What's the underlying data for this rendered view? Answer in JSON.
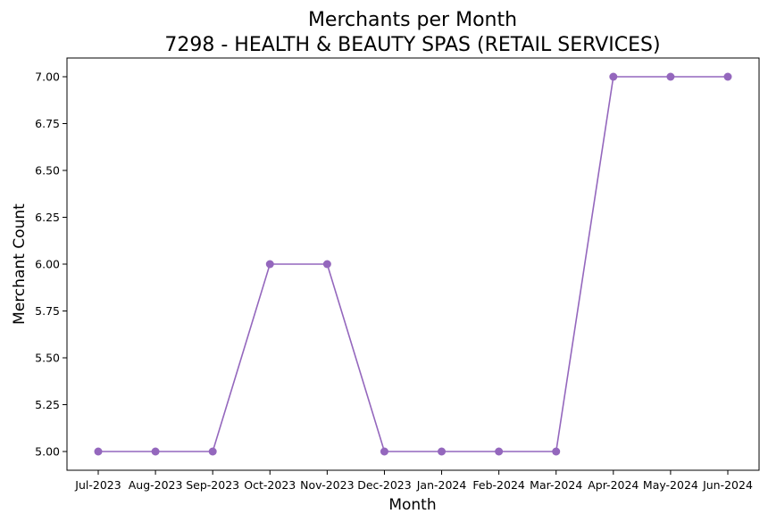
{
  "chart_data": {
    "type": "line",
    "title": "Merchants per Month",
    "subtitle": "7298 - HEALTH & BEAUTY SPAS (RETAIL SERVICES)",
    "xlabel": "Month",
    "ylabel": "Merchant Count",
    "categories": [
      "Jul-2023",
      "Aug-2023",
      "Sep-2023",
      "Oct-2023",
      "Nov-2023",
      "Dec-2023",
      "Jan-2024",
      "Feb-2024",
      "Mar-2024",
      "Apr-2024",
      "May-2024",
      "Jun-2024"
    ],
    "series": [
      {
        "values": [
          5,
          5,
          5,
          6,
          6,
          5,
          5,
          5,
          5,
          7,
          7,
          7
        ],
        "color": "#9467bd",
        "marker": "circle"
      }
    ],
    "ylim": [
      4.9,
      7.1
    ],
    "yticks": [
      "5.00",
      "5.25",
      "5.50",
      "5.75",
      "6.00",
      "6.25",
      "6.50",
      "6.75",
      "7.00"
    ],
    "grid": false,
    "legend": "none"
  }
}
